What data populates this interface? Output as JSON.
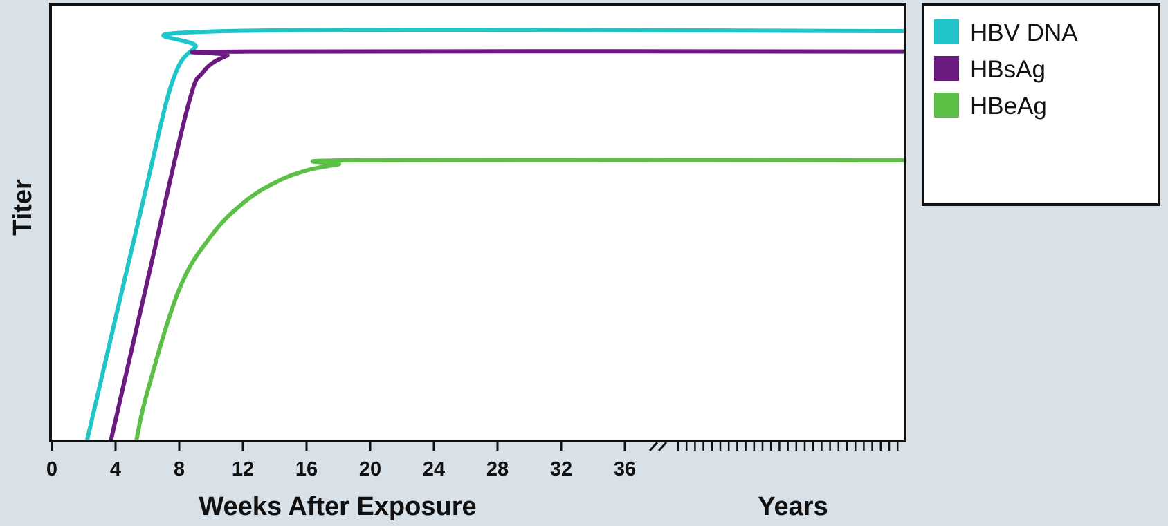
{
  "chart_data": {
    "type": "line",
    "title": "",
    "ylabel": "Titer",
    "xlabel": "Weeks After Exposure",
    "xlabel_secondary": "Years",
    "x_ticks": [
      "0",
      "4",
      "8",
      "12",
      "16",
      "20",
      "24",
      "28",
      "32",
      "36"
    ],
    "xlim_weeks": [
      0,
      40
    ],
    "ylim_relative": [
      0,
      1
    ],
    "y_ticks": "none",
    "grid": false,
    "legend_position": "outside-right-top",
    "axis_break": "after 36 weeks, continues on a years scale",
    "series": [
      {
        "name": "HBV DNA",
        "color": "#1fc5c8",
        "points": [
          [
            2.2,
            0
          ],
          [
            4,
            0.3
          ],
          [
            6,
            0.63
          ],
          [
            7.6,
            0.88
          ],
          [
            9,
            0.96
          ],
          [
            11,
            1.0
          ],
          [
            53.6,
            1.0
          ]
        ]
      },
      {
        "name": "HBsAg",
        "color": "#6b1a80",
        "points": [
          [
            3.7,
            0
          ],
          [
            6,
            0.39
          ],
          [
            8.5,
            0.81
          ],
          [
            9.5,
            0.9
          ],
          [
            11,
            0.94
          ],
          [
            12.5,
            0.95
          ],
          [
            53.6,
            0.95
          ]
        ]
      },
      {
        "name": "HBeAg",
        "color": "#5cbf46",
        "points": [
          [
            5.3,
            0
          ],
          [
            6,
            0.12
          ],
          [
            8,
            0.37
          ],
          [
            10,
            0.5
          ],
          [
            12,
            0.58
          ],
          [
            14,
            0.63
          ],
          [
            16,
            0.66
          ],
          [
            18,
            0.675
          ],
          [
            19.5,
            0.685
          ],
          [
            53.6,
            0.685
          ]
        ]
      }
    ]
  }
}
